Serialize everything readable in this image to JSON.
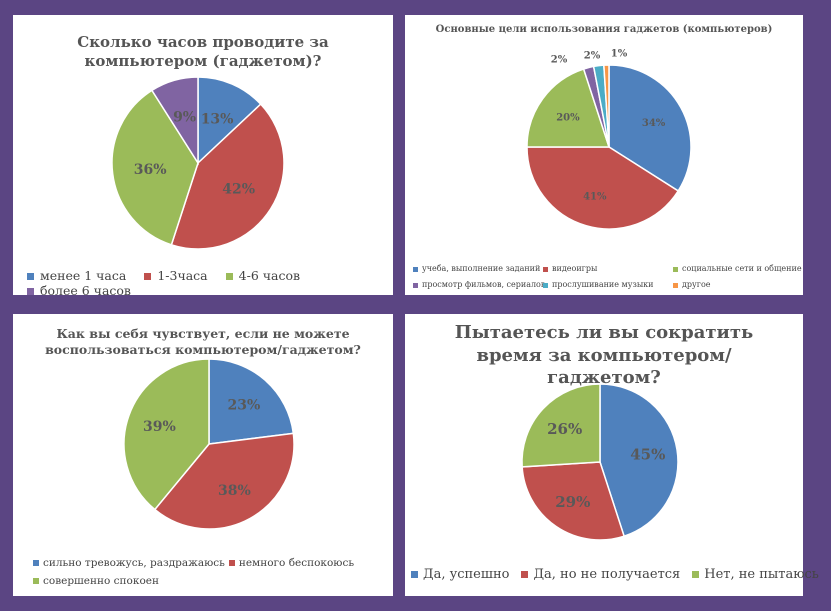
{
  "chart_data": [
    {
      "type": "pie",
      "title": "Сколько часов проводите за компьютером (гаджетом)?",
      "categories": [
        "менее 1 часа",
        "1-3часа",
        "4-6 часов",
        "более 6 часов"
      ],
      "values": [
        13,
        42,
        36,
        9
      ],
      "labels": [
        "13%",
        "42%",
        "36%",
        "9%"
      ],
      "colors": [
        "#4f81bd",
        "#c0504d",
        "#9bbb59",
        "#8064a2"
      ],
      "legend": "bottom"
    },
    {
      "type": "pie",
      "title": "Основные цели использования гаджетов (компьютеров)",
      "categories": [
        "учеба, выполнение заданий",
        "видеоигры",
        "социальные сети и общение",
        "просмотр фильмов, сериалов",
        "прослушивание музыки",
        "другое"
      ],
      "values": [
        34,
        41,
        20,
        2,
        2,
        1
      ],
      "labels": [
        "34%",
        "41%",
        "20%",
        "2%",
        "2%",
        "1%"
      ],
      "colors": [
        "#4f81bd",
        "#c0504d",
        "#9bbb59",
        "#8064a2",
        "#4bacc6",
        "#f79646"
      ],
      "legend": "bottom"
    },
    {
      "type": "pie",
      "title": "Как вы себя чувствует, если не можете воспользоваться компьютером/гаджетом?",
      "categories": [
        "сильно тревожусь, раздражаюсь",
        "немного беспокоюсь",
        "совершенно спокоен"
      ],
      "values": [
        23,
        38,
        39
      ],
      "labels": [
        "23%",
        "38%",
        "39%"
      ],
      "colors": [
        "#4f81bd",
        "#c0504d",
        "#9bbb59"
      ],
      "legend": "bottom"
    },
    {
      "type": "pie",
      "title": "Пытаетесь ли вы сократить время за компьютером/гаджетом?",
      "categories": [
        "Да, успешно",
        "Да, но не получается",
        "Нет, не пытаюсь"
      ],
      "values": [
        45,
        29,
        26
      ],
      "labels": [
        "45%",
        "29%",
        "26%"
      ],
      "colors": [
        "#4f81bd",
        "#c0504d",
        "#9bbb59"
      ],
      "legend": "bottom"
    }
  ]
}
